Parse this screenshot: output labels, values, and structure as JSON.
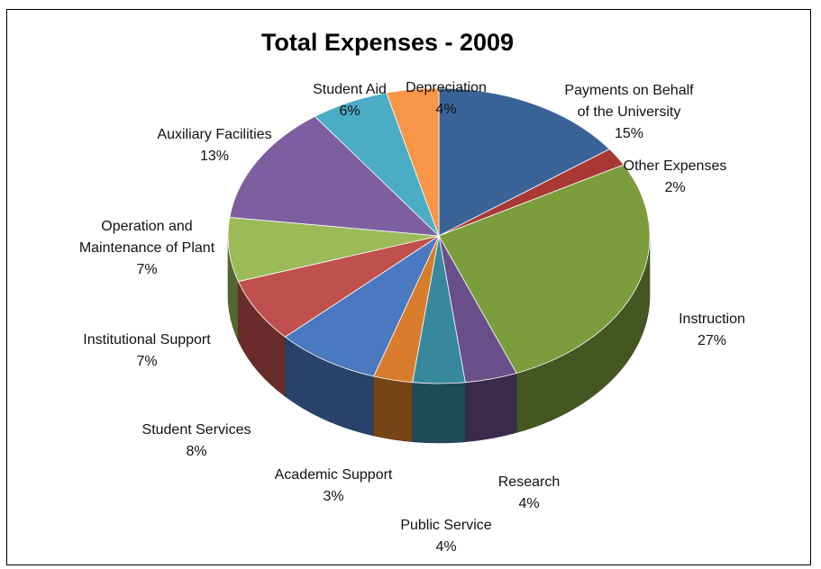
{
  "chart_data": {
    "type": "pie",
    "title": "Total Expenses - 2009",
    "slices": [
      {
        "name_lines": [
          "Payments on Behalf",
          "of the University"
        ],
        "pct_label": "15%",
        "value": 15,
        "color": "#3A6498"
      },
      {
        "name_lines": [
          "Other Expenses"
        ],
        "pct_label": "2%",
        "value": 2,
        "color": "#A93835"
      },
      {
        "name_lines": [
          "Instruction"
        ],
        "pct_label": "27%",
        "value": 27,
        "color": "#7B9D3C"
      },
      {
        "name_lines": [
          "Research"
        ],
        "pct_label": "4%",
        "value": 4,
        "color": "#6A4F8A"
      },
      {
        "name_lines": [
          "Public Service"
        ],
        "pct_label": "4%",
        "value": 4,
        "color": "#37889C"
      },
      {
        "name_lines": [
          "Academic Support"
        ],
        "pct_label": "3%",
        "value": 3,
        "color": "#D87C2B"
      },
      {
        "name_lines": [
          "Student Services"
        ],
        "pct_label": "8%",
        "value": 8,
        "color": "#4A78C1"
      },
      {
        "name_lines": [
          "Institutional  Support"
        ],
        "pct_label": "7%",
        "value": 7,
        "color": "#C0504D"
      },
      {
        "name_lines": [
          "Operation and",
          "Maintenance of Plant"
        ],
        "pct_label": "7%",
        "value": 7,
        "color": "#9BBB59"
      },
      {
        "name_lines": [
          "Auxiliary Facilities"
        ],
        "pct_label": "13%",
        "value": 13,
        "color": "#7D5FA1"
      },
      {
        "name_lines": [
          "Student Aid"
        ],
        "pct_label": "6%",
        "value": 6,
        "color": "#4BACC6"
      },
      {
        "name_lines": [
          "Depreciation"
        ],
        "pct_label": "4%",
        "value": 4,
        "color": "#F79646"
      }
    ]
  }
}
